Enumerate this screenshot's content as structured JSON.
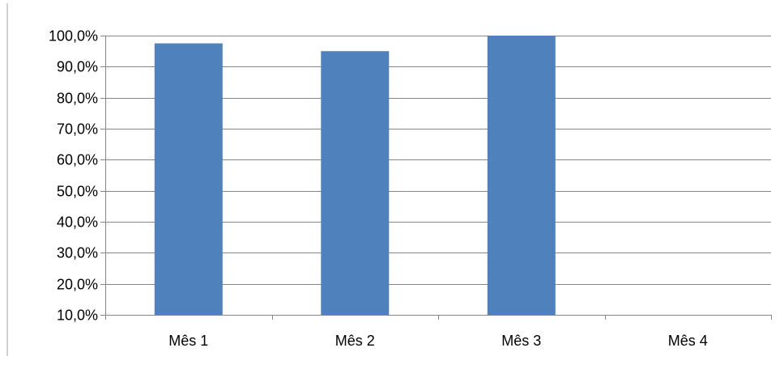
{
  "chart_data": {
    "type": "bar",
    "title": "",
    "xlabel": "",
    "ylabel": "",
    "categories": [
      "Mês 1",
      "Mês 2",
      "Mês 3",
      "Mês 4"
    ],
    "values": [
      97.5,
      95.0,
      100.0,
      null
    ],
    "ylim": [
      10,
      100
    ],
    "yticks": [
      10,
      20,
      30,
      40,
      50,
      60,
      70,
      80,
      90,
      100
    ],
    "ytick_labels": [
      "10,0%",
      "20,0%",
      "30,0%",
      "40,0%",
      "50,0%",
      "60,0%",
      "70,0%",
      "80,0%",
      "90,0%",
      "100,0%"
    ],
    "grid": true,
    "legend": "none",
    "bar_color": "#4f81bd",
    "grid_color": "#868686"
  }
}
